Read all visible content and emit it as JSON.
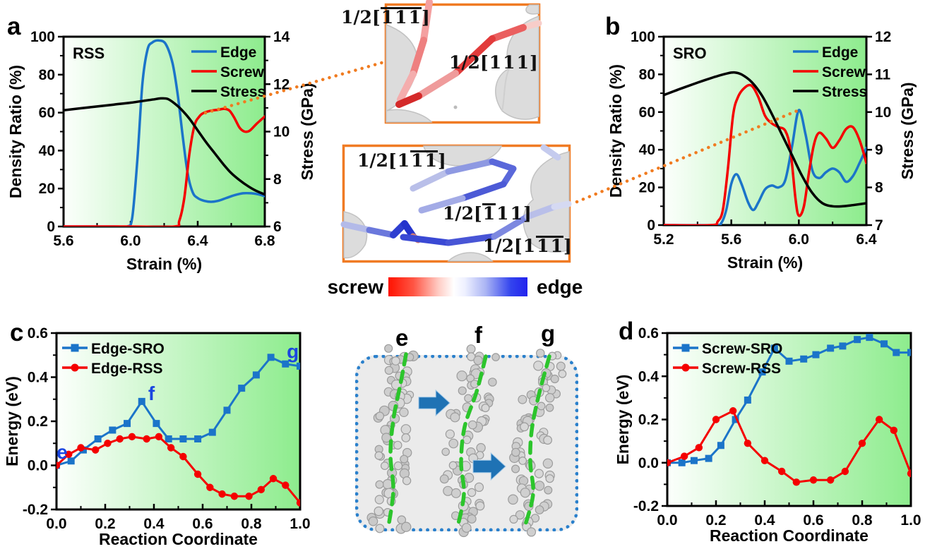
{
  "colors": {
    "blue": "#1b74c9",
    "red": "#f40000",
    "black": "#000000",
    "orange": "#f07b24",
    "annotation_blue": "#1a46e0",
    "arrow_blue": "#1f72b4",
    "dotted_box_blue": "#2a80cc",
    "green_dash": "#2cc52c",
    "bg_gradient_left": "#fcfffc",
    "bg_gradient_right": "#8dec8d"
  },
  "panel_letters": {
    "a": "a",
    "b": "b",
    "c": "c",
    "d": "d"
  },
  "chart_data": [
    {
      "id": "a",
      "type": "line",
      "title": "RSS",
      "smooth": true,
      "xlabel": "Strain (%)",
      "ylabel_left": "Density Ratio (%)",
      "ylabel_right": "Stress (GPa)",
      "xlim": [
        5.6,
        6.8
      ],
      "xticks": [
        "5.6",
        "6.0",
        "6.4",
        "6.8"
      ],
      "ylim_left": [
        0,
        100
      ],
      "yticks_left": [
        "0",
        "20",
        "40",
        "60",
        "80",
        "100"
      ],
      "ylim_right": [
        6,
        14
      ],
      "yticks_right": [
        "6",
        "8",
        "10",
        "12",
        "14"
      ],
      "right_minor": true,
      "legend_pos": "tr",
      "grid": false,
      "series": [
        {
          "name": "Edge",
          "color": "#1b74c9",
          "axis": "left",
          "x": [
            5.6,
            5.9,
            5.98,
            6.01,
            6.04,
            6.07,
            6.1,
            6.13,
            6.17,
            6.21,
            6.25,
            6.28,
            6.31,
            6.34,
            6.37,
            6.4,
            6.44,
            6.48,
            6.52,
            6.57,
            6.62,
            6.67,
            6.72,
            6.76,
            6.8
          ],
          "y": [
            0,
            0,
            0,
            5,
            35,
            75,
            93,
            97,
            98,
            96,
            86,
            70,
            48,
            28,
            18,
            15,
            13.5,
            13,
            13.5,
            15,
            16.5,
            17.5,
            17.5,
            17,
            16
          ]
        },
        {
          "name": "Screw",
          "color": "#f40000",
          "axis": "left",
          "x": [
            5.6,
            6.0,
            6.26,
            6.29,
            6.32,
            6.35,
            6.38,
            6.41,
            6.44,
            6.48,
            6.52,
            6.56,
            6.59,
            6.62,
            6.65,
            6.68,
            6.71,
            6.75,
            6.8
          ],
          "y": [
            0,
            0,
            0,
            3,
            15,
            38,
            53,
            58,
            60,
            61,
            61.5,
            62,
            61,
            57,
            52,
            50,
            50.5,
            54,
            58
          ]
        },
        {
          "name": "Stress",
          "color": "#000000",
          "axis": "right",
          "x": [
            5.6,
            5.7,
            5.8,
            5.9,
            6.0,
            6.08,
            6.14,
            6.18,
            6.22,
            6.26,
            6.3,
            6.35,
            6.4,
            6.45,
            6.5,
            6.55,
            6.6,
            6.65,
            6.7,
            6.75,
            6.8
          ],
          "y": [
            10.9,
            10.98,
            11.06,
            11.14,
            11.22,
            11.3,
            11.36,
            11.4,
            11.38,
            11.2,
            10.95,
            10.55,
            10.05,
            9.55,
            9.1,
            8.65,
            8.25,
            7.95,
            7.7,
            7.5,
            7.35
          ]
        }
      ],
      "annotations": []
    },
    {
      "id": "b",
      "type": "line",
      "title": "SRO",
      "smooth": true,
      "xlabel": "Strain (%)",
      "ylabel_left": "Density Ratio (%)",
      "ylabel_right": "Stress (GPa)",
      "xlim": [
        5.2,
        6.4
      ],
      "xticks": [
        "5.2",
        "5.6",
        "6.0",
        "6.4"
      ],
      "ylim_left": [
        0,
        100
      ],
      "yticks_left": [
        "0",
        "20",
        "40",
        "60",
        "80",
        "100"
      ],
      "ylim_right": [
        7,
        12
      ],
      "yticks_right": [
        "7",
        "8",
        "9",
        "10",
        "11",
        "12"
      ],
      "right_minor": false,
      "legend_pos": "tr",
      "grid": false,
      "series": [
        {
          "name": "Edge",
          "color": "#1b74c9",
          "axis": "left",
          "x": [
            5.2,
            5.5,
            5.54,
            5.57,
            5.6,
            5.63,
            5.66,
            5.7,
            5.73,
            5.76,
            5.8,
            5.84,
            5.88,
            5.92,
            5.96,
            6.0,
            6.04,
            6.08,
            6.12,
            6.16,
            6.2,
            6.24,
            6.28,
            6.32,
            6.36,
            6.4
          ],
          "y": [
            0,
            0,
            1,
            8,
            22,
            27,
            22,
            12,
            8,
            12,
            19,
            21,
            20,
            24,
            42,
            61,
            48,
            29,
            25,
            28,
            30,
            28,
            23,
            26,
            33,
            41
          ]
        },
        {
          "name": "Screw",
          "color": "#f40000",
          "axis": "left",
          "x": [
            5.2,
            5.48,
            5.52,
            5.55,
            5.58,
            5.61,
            5.64,
            5.68,
            5.72,
            5.76,
            5.8,
            5.84,
            5.88,
            5.92,
            5.95,
            5.98,
            6.0,
            6.03,
            6.06,
            6.09,
            6.12,
            6.16,
            6.2,
            6.24,
            6.28,
            6.32,
            6.36,
            6.4
          ],
          "y": [
            0,
            0,
            2,
            8,
            30,
            58,
            68,
            73,
            74,
            68,
            58,
            54,
            52,
            50,
            40,
            14,
            5,
            10,
            28,
            43,
            49,
            46,
            41,
            45,
            51,
            52,
            45,
            33
          ]
        },
        {
          "name": "Stress",
          "color": "#000000",
          "axis": "right",
          "x": [
            5.2,
            5.3,
            5.4,
            5.5,
            5.58,
            5.62,
            5.66,
            5.72,
            5.78,
            5.84,
            5.9,
            5.96,
            6.02,
            6.08,
            6.14,
            6.2,
            6.26,
            6.32,
            6.4
          ],
          "y": [
            10.45,
            10.62,
            10.78,
            10.93,
            11.03,
            11.05,
            11.0,
            10.8,
            10.45,
            9.95,
            9.4,
            8.85,
            8.3,
            7.85,
            7.58,
            7.5,
            7.5,
            7.53,
            7.58
          ]
        }
      ],
      "annotations": []
    },
    {
      "id": "c",
      "type": "line-scatter",
      "title": "",
      "smooth": false,
      "xlabel": "Reaction Coordinate",
      "ylabel": "Energy (eV)",
      "xlim": [
        0,
        1
      ],
      "xticks": [
        "0.0",
        "0.2",
        "0.4",
        "0.6",
        "0.8",
        "1.0"
      ],
      "ylim": [
        -0.2,
        0.6
      ],
      "yticks": [
        "-0.2",
        "0.0",
        "0.2",
        "0.4",
        "0.6"
      ],
      "legend_pos": "tl",
      "grid": false,
      "series": [
        {
          "name": "Edge-SRO",
          "color": "#1b74c9",
          "marker": "square",
          "x": [
            0.0,
            0.06,
            0.11,
            0.17,
            0.23,
            0.29,
            0.35,
            0.41,
            0.46,
            0.52,
            0.58,
            0.64,
            0.7,
            0.76,
            0.82,
            0.88,
            0.94,
            1.0
          ],
          "y": [
            0.0,
            0.02,
            0.07,
            0.12,
            0.16,
            0.19,
            0.29,
            0.19,
            0.12,
            0.12,
            0.12,
            0.15,
            0.25,
            0.35,
            0.41,
            0.49,
            0.46,
            0.45
          ]
        },
        {
          "name": "Edge-RSS",
          "color": "#f40000",
          "marker": "circle",
          "x": [
            0.0,
            0.05,
            0.1,
            0.16,
            0.21,
            0.26,
            0.31,
            0.37,
            0.42,
            0.47,
            0.52,
            0.58,
            0.63,
            0.68,
            0.73,
            0.79,
            0.84,
            0.89,
            0.94,
            1.0
          ],
          "y": [
            0.0,
            0.05,
            0.08,
            0.07,
            0.1,
            0.12,
            0.13,
            0.12,
            0.13,
            0.08,
            0.04,
            -0.04,
            -0.1,
            -0.13,
            -0.14,
            -0.14,
            -0.11,
            -0.06,
            -0.09,
            -0.17
          ]
        }
      ],
      "annotations": [
        {
          "text": "e",
          "x": 0.023,
          "y": 0.06
        },
        {
          "text": "f",
          "x": 0.39,
          "y": 0.325
        },
        {
          "text": "g",
          "x": 0.97,
          "y": 0.515
        }
      ]
    },
    {
      "id": "d",
      "type": "line-scatter",
      "title": "",
      "smooth": false,
      "xlabel": "Reaction Coordinate",
      "ylabel": "Energy (eV)",
      "xlim": [
        0,
        1
      ],
      "xticks": [
        "0.0",
        "0.2",
        "0.4",
        "0.6",
        "0.8",
        "1.0"
      ],
      "ylim": [
        -0.2,
        0.6
      ],
      "yticks": [
        "-0.2",
        "0.0",
        "0.2",
        "0.4",
        "0.6"
      ],
      "legend_pos": "tl",
      "grid": false,
      "series": [
        {
          "name": "Screw-SRO",
          "color": "#1b74c9",
          "marker": "square",
          "x": [
            0.0,
            0.06,
            0.11,
            0.17,
            0.22,
            0.28,
            0.33,
            0.39,
            0.44,
            0.5,
            0.56,
            0.61,
            0.67,
            0.72,
            0.78,
            0.83,
            0.89,
            0.94,
            1.0
          ],
          "y": [
            0.0,
            0.0,
            0.01,
            0.02,
            0.08,
            0.2,
            0.29,
            0.42,
            0.53,
            0.47,
            0.48,
            0.5,
            0.53,
            0.54,
            0.57,
            0.58,
            0.55,
            0.51,
            0.51
          ]
        },
        {
          "name": "Screw-RSS",
          "color": "#f40000",
          "marker": "circle",
          "x": [
            0.0,
            0.07,
            0.13,
            0.2,
            0.27,
            0.33,
            0.4,
            0.47,
            0.53,
            0.6,
            0.67,
            0.73,
            0.8,
            0.87,
            0.93,
            1.0
          ],
          "y": [
            0.0,
            0.03,
            0.07,
            0.2,
            0.24,
            0.09,
            0.01,
            -0.04,
            -0.09,
            -0.08,
            -0.08,
            -0.04,
            0.09,
            0.2,
            0.15,
            -0.05
          ]
        }
      ],
      "annotations": []
    }
  ],
  "insets": {
    "screw": {
      "labels": [
        {
          "pre": "1/2[",
          "digits": [
            "1",
            "1",
            "1"
          ],
          "bars": [
            true,
            true,
            true
          ],
          "post": "]"
        },
        {
          "pre": "1/2[",
          "digits": [
            "1",
            "1",
            "1"
          ],
          "bars": [
            false,
            false,
            false
          ],
          "post": "]"
        }
      ]
    },
    "edge": {
      "labels": [
        {
          "pre": "1/2[",
          "digits": [
            "1",
            "1",
            "1"
          ],
          "bars": [
            false,
            true,
            true
          ],
          "post": "]"
        },
        {
          "pre": "1/2[",
          "digits": [
            "1",
            "1",
            "1"
          ],
          "bars": [
            true,
            false,
            false
          ],
          "post": "]"
        },
        {
          "pre": "1/2[",
          "digits": [
            "1",
            "1",
            "1"
          ],
          "bars": [
            false,
            true,
            true
          ],
          "post": "]"
        }
      ]
    }
  },
  "colorbar": {
    "left_label": "screw",
    "right_label": "edge"
  },
  "middle_figure": {
    "labels": [
      "e",
      "f",
      "g"
    ]
  }
}
